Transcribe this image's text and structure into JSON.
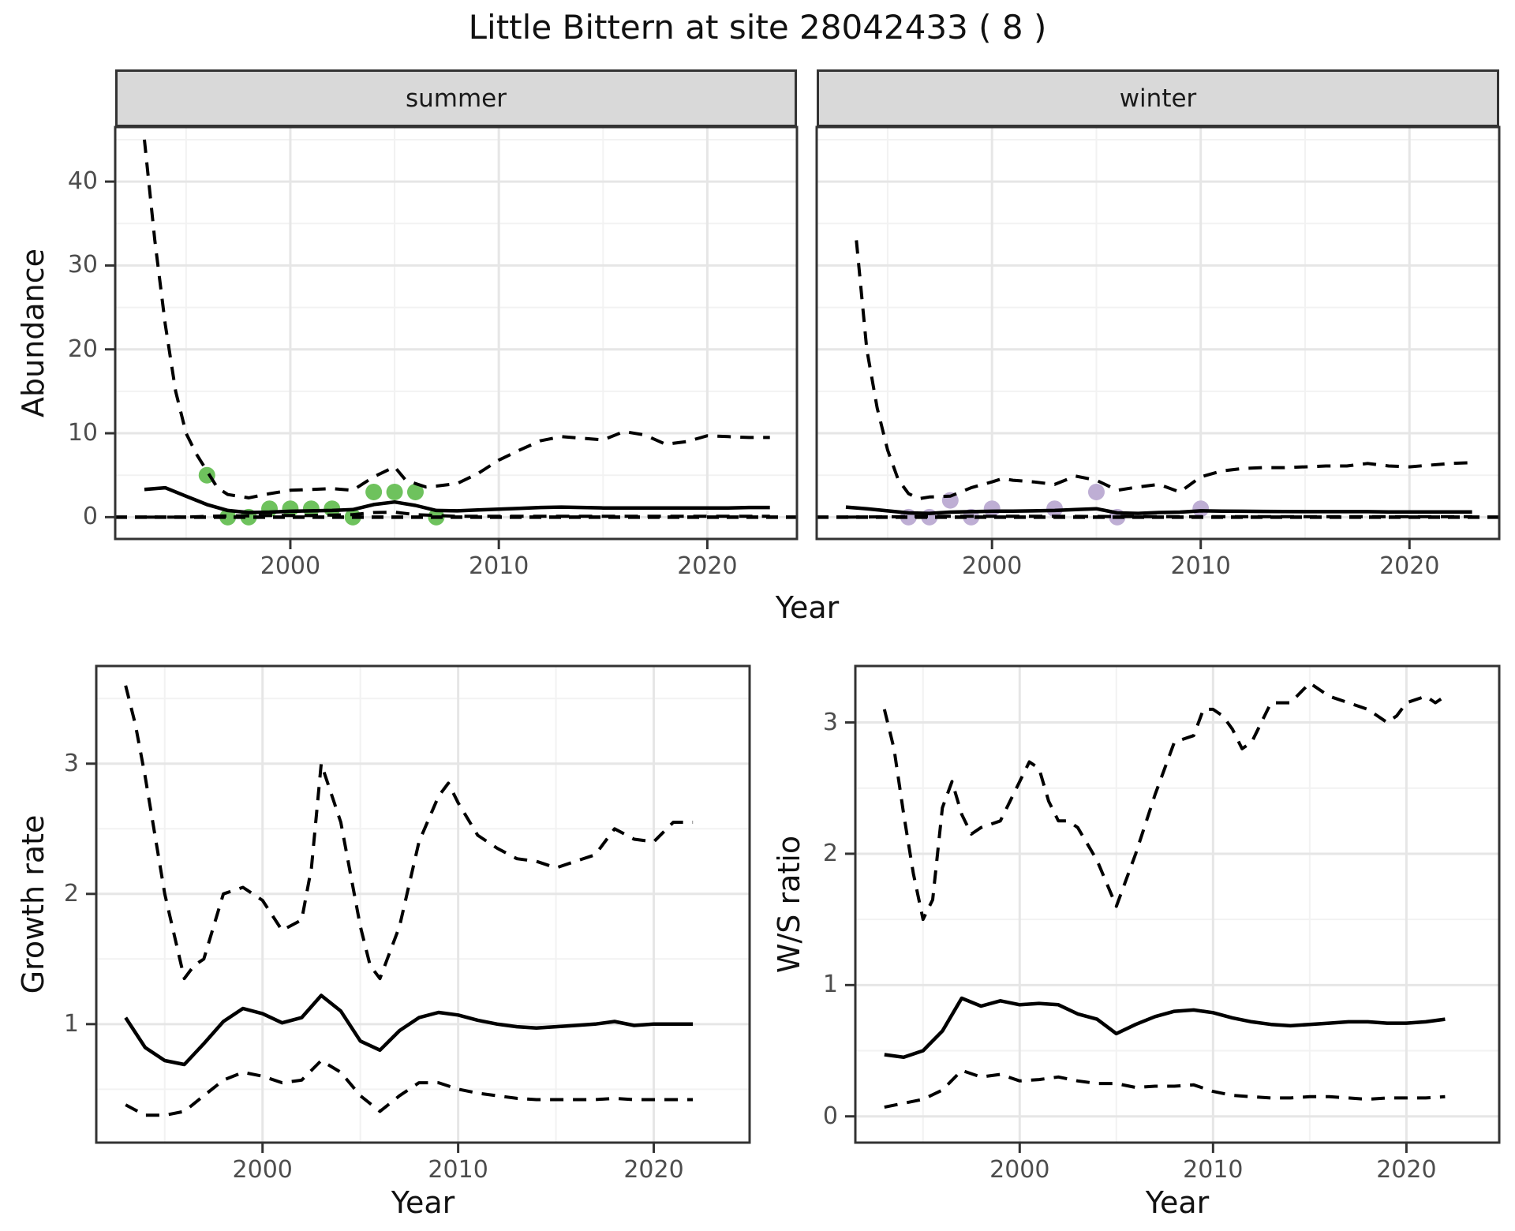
{
  "title": "Little Bittern at site 28042433 ( 8 )",
  "colors": {
    "summer_points": "#6EC25D",
    "winter_points": "#BEAED4",
    "line": "#000000",
    "panel_border": "#333333",
    "strip_background": "#d9d9d9",
    "grid_major": "#e6e6e6",
    "grid_minor": "#f2f2f2",
    "tick_text": "#4d4d4d"
  },
  "chart_data": [
    {
      "id": "abundance-summer",
      "type": "line",
      "facet_label": "summer",
      "xlabel": "Year",
      "ylabel": "Abundance",
      "x_domain": [
        1991.6,
        2024.3
      ],
      "y_domain": [
        -2.6,
        46.5
      ],
      "x_ticks": [
        2000,
        2010,
        2020
      ],
      "x_minor_ticks": [
        1995,
        2005,
        2015
      ],
      "y_ticks": [
        0,
        10,
        20,
        30,
        40
      ],
      "y_minor_ticks": [
        5,
        15,
        25,
        35,
        45
      ],
      "show_y_tick_labels": true,
      "zero_line": true,
      "legend": "none",
      "series": {
        "median": {
          "x": [
            1993,
            1994,
            1995,
            1996,
            1997,
            1998,
            1999,
            2000,
            2001,
            2002,
            2003,
            2004,
            2005,
            2006,
            2007,
            2008,
            2009,
            2010,
            2011,
            2012,
            2013,
            2014,
            2015,
            2016,
            2017,
            2018,
            2019,
            2020,
            2021,
            2022,
            2023
          ],
          "y": [
            3.3,
            3.5,
            2.5,
            1.5,
            0.8,
            0.55,
            0.6,
            0.7,
            0.75,
            0.8,
            0.9,
            1.5,
            1.8,
            1.4,
            0.8,
            0.75,
            0.85,
            0.95,
            1.05,
            1.15,
            1.2,
            1.15,
            1.1,
            1.1,
            1.1,
            1.1,
            1.1,
            1.1,
            1.1,
            1.15,
            1.15
          ]
        },
        "ci_upper": {
          "x": [
            1993,
            1993.5,
            1994,
            1994.5,
            1995,
            1995.5,
            1996,
            1996.5,
            1997,
            1998,
            1999,
            2000,
            2001,
            2002,
            2003,
            2004,
            2005,
            2005.5,
            2006,
            2006.5,
            2007,
            2008,
            2009,
            2010,
            2011,
            2012,
            2013,
            2014,
            2015,
            2016,
            2017,
            2018,
            2019,
            2020,
            2021,
            2022,
            2023
          ],
          "y": [
            45,
            33,
            23,
            15,
            10,
            7.5,
            5.5,
            3.5,
            2.7,
            2.3,
            2.8,
            3.2,
            3.3,
            3.4,
            3.2,
            4.8,
            6.0,
            4.5,
            4.0,
            3.6,
            3.7,
            4.0,
            5.2,
            6.8,
            8.0,
            9.1,
            9.6,
            9.4,
            9.2,
            10.2,
            9.8,
            8.7,
            9.0,
            9.7,
            9.6,
            9.5,
            9.5
          ]
        },
        "ci_lower": {
          "x": [
            1993,
            1994,
            1995,
            1996,
            1997,
            1998,
            1999,
            2000,
            2001,
            2002,
            2003,
            2004,
            2005,
            2006,
            2007,
            2008,
            2009,
            2010,
            2012,
            2014,
            2016,
            2018,
            2020,
            2023
          ],
          "y": [
            0,
            0,
            0,
            0.1,
            0.15,
            0.15,
            0.2,
            0.2,
            0.2,
            0.25,
            0.3,
            0.55,
            0.6,
            0.3,
            0.2,
            0.1,
            0.1,
            0.1,
            0.1,
            0.1,
            0.1,
            0.1,
            0.1,
            0.1
          ]
        }
      },
      "observations": {
        "x": [
          1996,
          1997,
          1998,
          1999,
          2000,
          2001,
          2002,
          2003,
          2004,
          2005,
          2006,
          2007
        ],
        "y": [
          5,
          0,
          0,
          1,
          1,
          1,
          1,
          0,
          3,
          3,
          3,
          0
        ]
      },
      "point_color": "#6EC25D"
    },
    {
      "id": "abundance-winter",
      "type": "line",
      "facet_label": "winter",
      "xlabel": "Year",
      "ylabel": "Abundance",
      "x_domain": [
        1991.6,
        2024.3
      ],
      "y_domain": [
        -2.6,
        46.5
      ],
      "x_ticks": [
        2000,
        2010,
        2020
      ],
      "x_minor_ticks": [
        1995,
        2005,
        2015
      ],
      "y_ticks": [
        0,
        10,
        20,
        30,
        40
      ],
      "y_minor_ticks": [
        5,
        15,
        25,
        35,
        45
      ],
      "show_y_tick_labels": false,
      "zero_line": true,
      "legend": "none",
      "series": {
        "median": {
          "x": [
            1993,
            1994,
            1995,
            1996,
            1997,
            1998,
            1999,
            2000,
            2001,
            2002,
            2003,
            2004,
            2005,
            2006,
            2007,
            2008,
            2009,
            2010,
            2011,
            2012,
            2013,
            2014,
            2015,
            2016,
            2017,
            2018,
            2019,
            2020,
            2021,
            2022,
            2023
          ],
          "y": [
            1.2,
            1.0,
            0.75,
            0.5,
            0.45,
            0.6,
            0.65,
            0.7,
            0.72,
            0.75,
            0.8,
            0.9,
            1.0,
            0.5,
            0.45,
            0.55,
            0.6,
            0.75,
            0.72,
            0.7,
            0.68,
            0.66,
            0.65,
            0.65,
            0.65,
            0.65,
            0.62,
            0.62,
            0.62,
            0.63,
            0.63
          ]
        },
        "ci_upper": {
          "x": [
            1993.5,
            1994,
            1994.5,
            1995,
            1995.5,
            1996,
            1996.5,
            1997,
            1998,
            1999,
            2000,
            2000.5,
            2001,
            2002,
            2003,
            2004,
            2005,
            2006,
            2007,
            2008,
            2009,
            2010,
            2011,
            2012,
            2013,
            2014,
            2015,
            2016,
            2017,
            2018,
            2019,
            2020,
            2021,
            2022,
            2023
          ],
          "y": [
            33,
            20,
            13,
            8,
            4.5,
            2.8,
            2.2,
            2.4,
            2.5,
            3.5,
            4.2,
            4.6,
            4.4,
            4.2,
            3.9,
            4.9,
            4.4,
            3.2,
            3.6,
            3.9,
            3.0,
            4.8,
            5.5,
            5.8,
            5.9,
            5.9,
            6.0,
            6.1,
            6.1,
            6.4,
            6.1,
            6.0,
            6.2,
            6.4,
            6.5
          ]
        },
        "ci_lower": {
          "x": [
            1993,
            1998,
            2003,
            2008,
            2013,
            2018,
            2023
          ],
          "y": [
            0,
            0.1,
            0.1,
            0.05,
            0.05,
            0.05,
            0.05
          ]
        }
      },
      "observations": {
        "x": [
          1996,
          1997,
          1998,
          1999,
          2000,
          2003,
          2005,
          2006,
          2010
        ],
        "y": [
          0,
          0,
          2,
          0,
          1,
          1,
          3,
          0,
          1
        ]
      },
      "point_color": "#BEAED4"
    },
    {
      "id": "growth-rate",
      "type": "line",
      "facet_label": null,
      "xlabel": "Year",
      "ylabel": "Growth rate",
      "x_domain": [
        1991.5,
        2024.9
      ],
      "y_domain": [
        0.09,
        3.75
      ],
      "x_ticks": [
        2000,
        2010,
        2020
      ],
      "x_minor_ticks": [
        1995,
        2005,
        2015
      ],
      "y_ticks": [
        1,
        2,
        3
      ],
      "y_minor_ticks": [
        0.5,
        1.5,
        2.5,
        3.5
      ],
      "show_y_tick_labels": true,
      "zero_line": false,
      "legend": "none",
      "series": {
        "median": {
          "x": [
            1993,
            1994,
            1995,
            1996,
            1997,
            1998,
            1999,
            2000,
            2001,
            2002,
            2003,
            2004,
            2005,
            2006,
            2007,
            2008,
            2009,
            2010,
            2011,
            2012,
            2013,
            2014,
            2015,
            2016,
            2017,
            2018,
            2019,
            2020,
            2021,
            2022
          ],
          "y": [
            1.05,
            0.82,
            0.72,
            0.69,
            0.85,
            1.02,
            1.12,
            1.08,
            1.01,
            1.05,
            1.22,
            1.1,
            0.87,
            0.8,
            0.95,
            1.05,
            1.09,
            1.07,
            1.03,
            1.0,
            0.98,
            0.97,
            0.98,
            0.99,
            1.0,
            1.02,
            0.99,
            1.0,
            1.0,
            1.0
          ]
        },
        "ci_upper": {
          "x": [
            1993,
            1993.5,
            1994,
            1994.5,
            1995,
            1996,
            1996.5,
            1997,
            1998,
            1999,
            2000,
            2001,
            2002,
            2002.5,
            2003,
            2004,
            2005,
            2005.5,
            2006,
            2007,
            2008,
            2009,
            2009.5,
            2010,
            2011,
            2012,
            2013,
            2014,
            2015,
            2016,
            2017,
            2018,
            2019,
            2020,
            2021,
            2022
          ],
          "y": [
            3.6,
            3.3,
            2.9,
            2.45,
            2.0,
            1.35,
            1.45,
            1.5,
            2.0,
            2.05,
            1.95,
            1.72,
            1.8,
            2.2,
            3.0,
            2.55,
            1.75,
            1.45,
            1.35,
            1.75,
            2.4,
            2.75,
            2.85,
            2.7,
            2.45,
            2.35,
            2.27,
            2.25,
            2.2,
            2.25,
            2.3,
            2.5,
            2.42,
            2.4,
            2.55,
            2.55
          ]
        },
        "ci_lower": {
          "x": [
            1993,
            1994,
            1995,
            1996,
            1997,
            1998,
            1999,
            2000,
            2001,
            2002,
            2003,
            2004,
            2005,
            2006,
            2007,
            2008,
            2009,
            2010,
            2011,
            2012,
            2013,
            2014,
            2015,
            2016,
            2017,
            2018,
            2019,
            2020,
            2021,
            2022
          ],
          "y": [
            0.38,
            0.3,
            0.3,
            0.33,
            0.45,
            0.57,
            0.63,
            0.6,
            0.55,
            0.57,
            0.72,
            0.63,
            0.45,
            0.33,
            0.45,
            0.55,
            0.55,
            0.5,
            0.47,
            0.45,
            0.43,
            0.42,
            0.42,
            0.42,
            0.42,
            0.43,
            0.42,
            0.42,
            0.42,
            0.42
          ]
        }
      },
      "observations": null,
      "point_color": null
    },
    {
      "id": "ws-ratio",
      "type": "line",
      "facet_label": null,
      "xlabel": "Year",
      "ylabel": "W/S ratio",
      "x_domain": [
        1991.5,
        2024.8
      ],
      "y_domain": [
        -0.2,
        3.43
      ],
      "x_ticks": [
        2000,
        2010,
        2020
      ],
      "x_minor_ticks": [
        1995,
        2005,
        2015
      ],
      "y_ticks": [
        0,
        1,
        2,
        3
      ],
      "y_minor_ticks": [
        0.5,
        1.5,
        2.5
      ],
      "show_y_tick_labels": true,
      "zero_line": false,
      "legend": "none",
      "series": {
        "median": {
          "x": [
            1993,
            1994,
            1995,
            1996,
            1997,
            1998,
            1999,
            2000,
            2001,
            2002,
            2003,
            2004,
            2005,
            2006,
            2007,
            2008,
            2009,
            2010,
            2011,
            2012,
            2013,
            2014,
            2015,
            2016,
            2017,
            2018,
            2019,
            2020,
            2021,
            2022
          ],
          "y": [
            0.47,
            0.45,
            0.5,
            0.65,
            0.9,
            0.84,
            0.88,
            0.85,
            0.86,
            0.85,
            0.78,
            0.74,
            0.63,
            0.7,
            0.76,
            0.8,
            0.81,
            0.79,
            0.75,
            0.72,
            0.7,
            0.69,
            0.7,
            0.71,
            0.72,
            0.72,
            0.71,
            0.71,
            0.72,
            0.74
          ]
        },
        "ci_upper": {
          "x": [
            1993,
            1993.5,
            1994,
            1994.5,
            1995,
            1995.5,
            1996,
            1996.5,
            1997,
            1997.5,
            1998,
            1999,
            2000,
            2000.5,
            2001,
            2001.5,
            2002,
            2002.5,
            2003,
            2004,
            2005,
            2006,
            2007,
            2008,
            2009,
            2009.5,
            2010,
            2010.5,
            2011,
            2011.5,
            2012,
            2013,
            2014,
            2015,
            2016,
            2017,
            2018,
            2019,
            2019.5,
            2020,
            2021,
            2021.5,
            2022
          ],
          "y": [
            3.1,
            2.8,
            2.3,
            1.85,
            1.5,
            1.65,
            2.35,
            2.55,
            2.3,
            2.15,
            2.2,
            2.25,
            2.55,
            2.7,
            2.65,
            2.4,
            2.25,
            2.25,
            2.2,
            1.95,
            1.6,
            2.0,
            2.45,
            2.85,
            2.9,
            3.1,
            3.1,
            3.05,
            2.95,
            2.8,
            2.85,
            3.15,
            3.15,
            3.3,
            3.2,
            3.15,
            3.1,
            3.0,
            3.05,
            3.15,
            3.2,
            3.15,
            3.2
          ]
        },
        "ci_lower": {
          "x": [
            1993,
            1994,
            1995,
            1996,
            1997,
            1998,
            1999,
            2000,
            2001,
            2002,
            2003,
            2004,
            2005,
            2006,
            2007,
            2008,
            2009,
            2010,
            2011,
            2012,
            2013,
            2014,
            2015,
            2016,
            2017,
            2018,
            2019,
            2020,
            2021,
            2022
          ],
          "y": [
            0.07,
            0.1,
            0.13,
            0.2,
            0.35,
            0.3,
            0.32,
            0.27,
            0.28,
            0.3,
            0.27,
            0.25,
            0.25,
            0.22,
            0.23,
            0.23,
            0.24,
            0.19,
            0.16,
            0.15,
            0.14,
            0.14,
            0.15,
            0.15,
            0.14,
            0.13,
            0.14,
            0.14,
            0.14,
            0.15
          ]
        }
      },
      "observations": null,
      "point_color": null
    }
  ]
}
